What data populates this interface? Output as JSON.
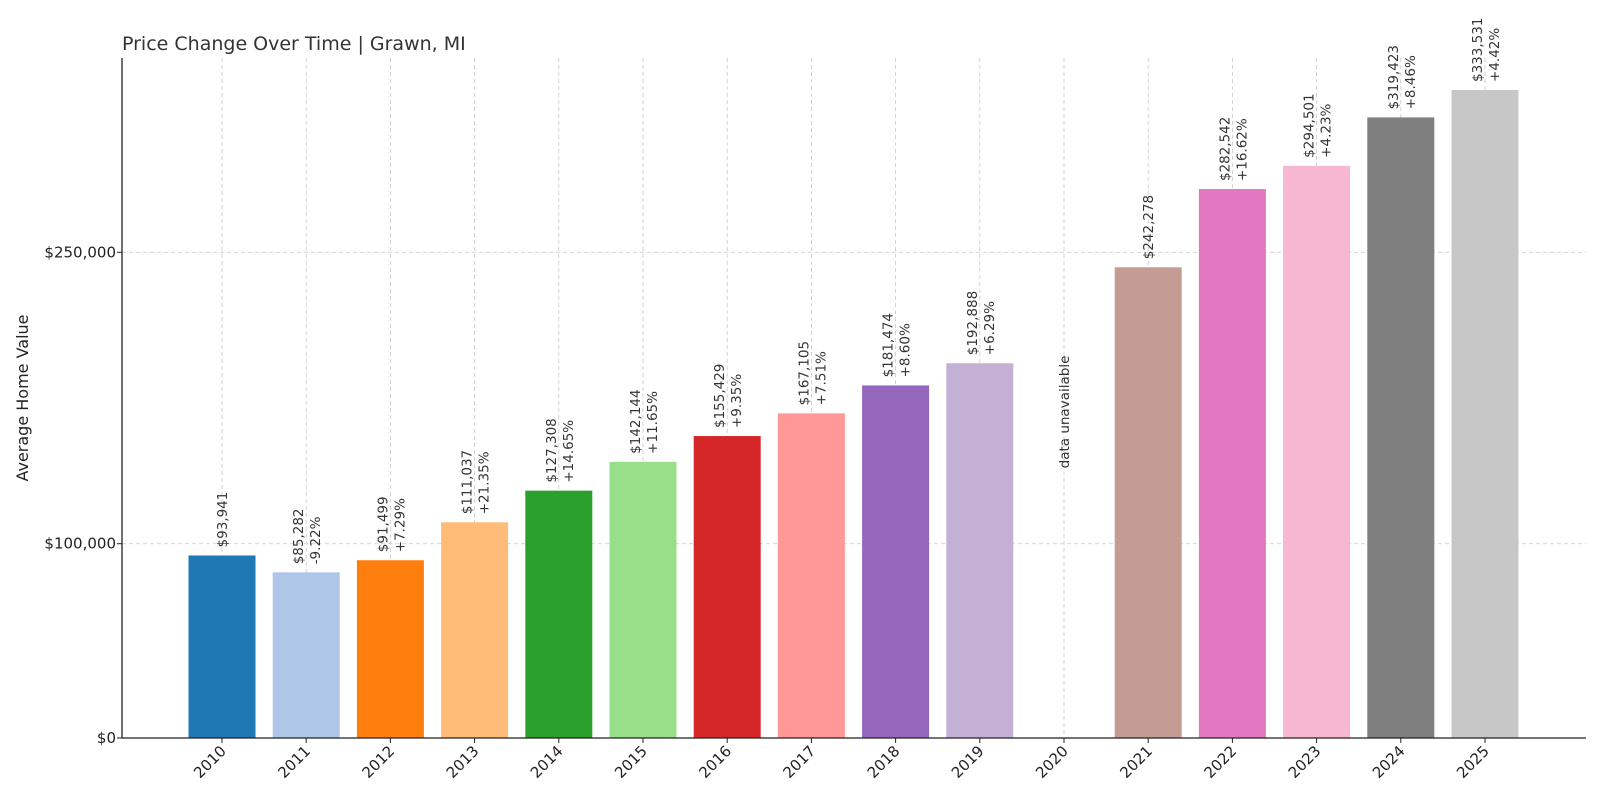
{
  "chart_data": {
    "type": "bar",
    "title": "Price Change Over Time | Grawn, MI",
    "xlabel": "",
    "ylabel": "Average Home Value",
    "ylim": [
      0,
      350000
    ],
    "yticks": [
      0,
      100000,
      250000
    ],
    "ytick_labels": [
      "$0",
      "$100,000",
      "$250,000"
    ],
    "grid": true,
    "categories": [
      "2010",
      "2011",
      "2012",
      "2013",
      "2014",
      "2015",
      "2016",
      "2017",
      "2018",
      "2019",
      "2020",
      "2021",
      "2022",
      "2023",
      "2024",
      "2025"
    ],
    "values": [
      93941,
      85282,
      91499,
      111037,
      127308,
      142144,
      155429,
      167105,
      181474,
      192888,
      null,
      242278,
      282542,
      294501,
      319423,
      333531
    ],
    "value_labels": [
      "$93,941",
      "$85,282",
      "$91,499",
      "$111,037",
      "$127,308",
      "$142,144",
      "$155,429",
      "$167,105",
      "$181,474",
      "$192,888",
      "",
      "$242,278",
      "$282,542",
      "$294,501",
      "$319,423",
      "$333,531"
    ],
    "change_labels": [
      "",
      "-9.22%",
      "+7.29%",
      "+21.35%",
      "+14.65%",
      "+11.65%",
      "+9.35%",
      "+7.51%",
      "+8.60%",
      "+6.29%",
      "",
      "",
      "+16.62%",
      "+4.23%",
      "+8.46%",
      "+4.42%"
    ],
    "missing_label": "data unavailable",
    "colors": [
      "#1f77b4",
      "#aec7e8",
      "#ff7f0e",
      "#ffbb78",
      "#2ca02c",
      "#98df8a",
      "#d62728",
      "#ff9896",
      "#9467bd",
      "#c5b0d5",
      "#8c564b",
      "#c49c94",
      "#e377c2",
      "#f7b6d2",
      "#7f7f7f",
      "#c7c7c7"
    ]
  }
}
